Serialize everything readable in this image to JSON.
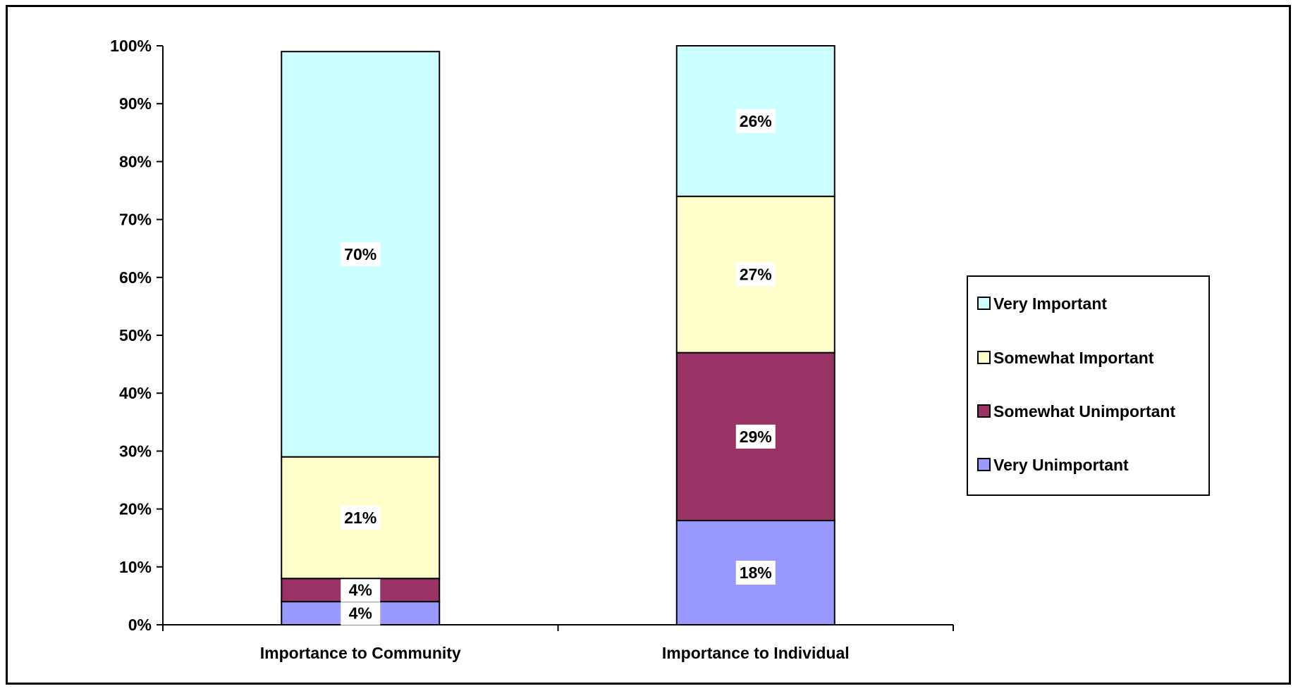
{
  "chart_data": {
    "type": "bar",
    "stacked": true,
    "categories": [
      "Importance to Community",
      "Importance to Individual"
    ],
    "series": [
      {
        "name": "Very Unimportant",
        "values": [
          4,
          18
        ],
        "color": "#9999ff"
      },
      {
        "name": "Somewhat Unimportant",
        "values": [
          4,
          29
        ],
        "color": "#993366"
      },
      {
        "name": "Somewhat Important",
        "values": [
          21,
          27
        ],
        "color": "#ffffcc"
      },
      {
        "name": "Very Important",
        "values": [
          70,
          26
        ],
        "color": "#ccffff"
      }
    ],
    "data_labels": [
      [
        "4%",
        "18%"
      ],
      [
        "4%",
        "29%"
      ],
      [
        "21%",
        "27%"
      ],
      [
        "70%",
        "26%"
      ]
    ],
    "y_ticks": [
      "0%",
      "10%",
      "20%",
      "30%",
      "40%",
      "50%",
      "60%",
      "70%",
      "80%",
      "90%",
      "100%"
    ],
    "ylim": [
      0,
      100
    ],
    "legend": {
      "position": "right",
      "order": [
        "Very Important",
        "Somewhat Important",
        "Somewhat Unimportant",
        "Very Unimportant"
      ]
    },
    "grid": false
  }
}
